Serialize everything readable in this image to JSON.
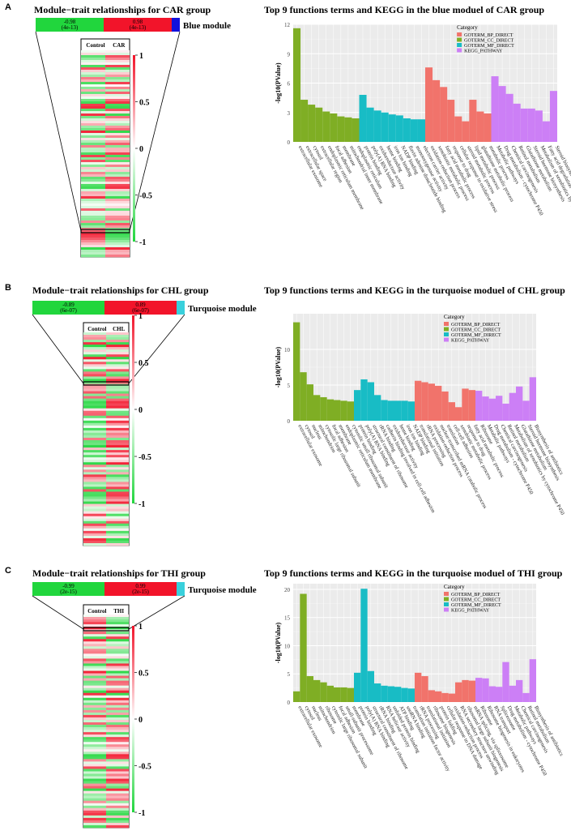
{
  "colors": {
    "bp": "#f1736b",
    "cc": "#7fae24",
    "mf": "#18bcc5",
    "kegg": "#cc7ff6",
    "neg": "#21d63d",
    "pos": "#f2142a",
    "blue_module": "#1111dd",
    "turq_module": "#39d0dc"
  },
  "panels": [
    {
      "label": "A",
      "heatmap": {
        "title": "Module−trait relationships for CAR group",
        "columns": [
          "Control",
          "CAR"
        ],
        "neg_value": "-0.98",
        "neg_p": "(4e-13)",
        "pos_value": "0.98",
        "pos_p": "(4e-13)",
        "module": "Blue module",
        "module_color": "blue_module",
        "scale_ticks": [
          "1",
          "0.5",
          "0",
          "-0.5",
          "-1"
        ]
      },
      "chart_data": {
        "type": "bar",
        "title": "Top 9 functions terms and KEGG in the blue moduel of CAR group",
        "ylabel": "-log10(PValue)",
        "ylim": [
          0,
          12
        ],
        "yticks": [
          0,
          3,
          6,
          9,
          12
        ],
        "legend_title": "Category",
        "legend": [
          "GOTERM_BP_DIRECT",
          "GOTERM_CC_DIRECT",
          "GOTERM_MF_DIRECT",
          "KEGG_PATHWAY"
        ],
        "series": [
          {
            "name": "GOTERM_CC_DIRECT",
            "color": "cc",
            "categories": [
              "extracellular exosome",
              "extracellular space",
              "cytosol",
              "extracellular region",
              "endoplasmic reticulum membrane",
              "focal adhesion",
              "membrane",
              "mitochondrial inner membrane",
              "endoplasmic reticulum"
            ],
            "values": [
              11.6,
              4.3,
              3.8,
              3.5,
              3.1,
              2.9,
              2.6,
              2.5,
              2.4
            ]
          },
          {
            "name": "GOTERM_MF_DIRECT",
            "color": "mf",
            "categories": [
              "protein binding",
              "poly(A) RNA binding",
              "oxidoreductase activity",
              "heme binding",
              "iron ion binding",
              "NADP binding",
              "flavin adenine dinucleotide binding",
              "monooxygenase activity",
              "electron carrier activity"
            ],
            "values": [
              4.8,
              3.5,
              3.2,
              3.0,
              2.8,
              2.7,
              2.4,
              2.3,
              2.3
            ]
          },
          {
            "name": "GOTERM_BP_DIRECT",
            "color": "bp",
            "categories": [
              "oxidation-reduction process",
              "xenobiotic metabolic process",
              "fatty acid metabolic process",
              "response to drug",
              "cellular response to oxidative stress",
              "steroid metabolic process",
              "lipid metabolic process",
              "glutathione metabolic process",
              "metabolic process"
            ],
            "values": [
              7.6,
              6.3,
              5.6,
              4.3,
              2.6,
              2.1,
              4.3,
              3.1,
              2.9
            ]
          },
          {
            "name": "KEGG_PATHWAY",
            "color": "kegg",
            "categories": [
              "Metabolic pathways",
              "Drug metabolism - cytochrome P450",
              "Chemical carcinogenesis",
              "Retinol metabolism",
              "Glutathione metabolism",
              "Steroid hormone biosynthesis",
              "Metabolism of xenobiotics by cytochrome P450",
              "Fatty acid degradation",
              "Steroid biosynthesis"
            ],
            "values": [
              6.7,
              5.7,
              4.9,
              3.9,
              3.4,
              3.4,
              3.2,
              2.1,
              5.2
            ]
          }
        ]
      }
    },
    {
      "label": "B",
      "heatmap": {
        "title": "Module−trait relationships for CHL group",
        "columns": [
          "Control",
          "CHL"
        ],
        "neg_value": "-0.89",
        "neg_p": "(6e-07)",
        "pos_value": "0.89",
        "pos_p": "(6e-07)",
        "module": "Turquoise module",
        "module_color": "turq_module",
        "scale_ticks": [
          "1",
          "0.5",
          "0",
          "-0.5",
          "-1"
        ]
      },
      "chart_data": {
        "type": "bar",
        "title": "Top 9 functions terms and KEGG in the turquoise moduel of CHL group",
        "ylabel": "-log10(PValue)",
        "ylim": [
          0,
          15
        ],
        "yticks": [
          0,
          5,
          10
        ],
        "legend_title": "Category",
        "legend": [
          "GOTERM_BP_DIRECT",
          "GOTERM_CC_DIRECT",
          "GOTERM_MF_DIRECT",
          "KEGG_PATHWAY"
        ],
        "series": [
          {
            "name": "GOTERM_CC_DIRECT",
            "color": "cc",
            "categories": [
              "extracellular exosome",
              "cytosol",
              "nucleus",
              "mitochondrion",
              "cytosolic large ribosomal subunit",
              "focal adhesion",
              "membrane",
              "endoplasmic reticulum membrane",
              "cytosolic small ribosomal subunit"
            ],
            "values": [
              13.8,
              6.8,
              5.1,
              3.6,
              3.3,
              3.0,
              2.9,
              2.8,
              2.7
            ]
          },
          {
            "name": "GOTERM_MF_DIRECT",
            "color": "mf",
            "categories": [
              "protein binding",
              "poly(A) RNA binding",
              "structural constituent of ribosome",
              "rRNA binding",
              "cadherin binding involved in cell-cell adhesion",
              "oxidoreductase activity",
              "heme binding",
              "iron ion binding",
              "NADP binding"
            ],
            "values": [
              4.3,
              5.8,
              5.4,
              3.6,
              2.9,
              2.8,
              2.8,
              2.8,
              2.7
            ]
          },
          {
            "name": "GOTERM_BP_DIRECT",
            "color": "bp",
            "categories": [
              "translational initiation",
              "rRNA processing",
              "oxidation-reduction process",
              "nuclear-transcribed mRNA catabolic process",
              "translation",
              "cell-cell adhesion",
              "xenobiotic metabolic process",
              "response to drug",
              "fatty acid metabolic process"
            ],
            "values": [
              5.6,
              5.4,
              5.2,
              4.9,
              4.1,
              2.6,
              1.9,
              4.5,
              4.3
            ]
          },
          {
            "name": "KEGG_PATHWAY",
            "color": "kegg",
            "categories": [
              "Ribosome",
              "Metabolic pathways",
              "Drug metabolism - cytochrome P450",
              "Chemical carcinogenesis",
              "Retinol metabolism",
              "Metabolism of xenobiotics by cytochrome P450",
              "Glutathione metabolism",
              "Steroid hormone biosynthesis",
              "Biosynthesis of antibiotics"
            ],
            "values": [
              4.2,
              3.4,
              3.1,
              3.5,
              2.4,
              3.9,
              4.8,
              2.8,
              6.1
            ]
          }
        ]
      }
    },
    {
      "label": "C",
      "heatmap": {
        "title": "Module−trait relationships for THI group",
        "columns": [
          "Control",
          "THI"
        ],
        "neg_value": "-0.99",
        "neg_p": "(2e-15)",
        "pos_value": "0.99",
        "pos_p": "(2e-15)",
        "module": "Turquoise module",
        "module_color": "turq_module",
        "scale_ticks": [
          "1",
          "0.5",
          "0",
          "-0.5",
          "-1"
        ]
      },
      "chart_data": {
        "type": "bar",
        "title": "Top 9 functions terms and KEGG in the turquoise moduel of THI group",
        "ylabel": "-log10(PValue)",
        "ylim": [
          0,
          21
        ],
        "yticks": [
          0,
          5,
          10,
          15,
          20
        ],
        "legend_title": "Category",
        "legend": [
          "GOTERM_BP_DIRECT",
          "GOTERM_CC_DIRECT",
          "GOTERM_MF_DIRECT",
          "KEGG_PATHWAY"
        ],
        "series": [
          {
            "name": "GOTERM_CC_DIRECT",
            "color": "cc",
            "categories": [
              "extracellular exosome",
              "cytosol",
              "nucleus",
              "mitochondrion",
              "ribosome",
              "cytosolic large ribosomal subunit",
              "focal adhesion",
              "small-subunit processome",
              "membrane"
            ],
            "values": [
              1.9,
              19.2,
              4.6,
              3.9,
              3.5,
              2.9,
              2.6,
              2.6,
              2.5
            ]
          },
          {
            "name": "GOTERM_MF_DIRECT",
            "color": "mf",
            "categories": [
              "protein binding",
              "poly(A) RNA binding",
              "structural constituent of ribosome",
              "rRNA binding",
              "RNA helicase activity",
              "unfolded protein binding",
              "ATP binding",
              "snoRNA binding",
              "translation initiation factor activity"
            ],
            "values": [
              5.2,
              20.1,
              5.5,
              3.3,
              2.9,
              2.8,
              2.7,
              2.5,
              2.4
            ]
          },
          {
            "name": "GOTERM_BP_DIRECT",
            "color": "bp",
            "categories": [
              "rRNA processing",
              "translational initiation",
              "ribosome biogenesis",
              "protein folding",
              "cellular response to DNA damage",
              "oxidation-reduction process",
              "RNA secondary structure unwinding",
              "ribosomal large subunit biogenesis",
              "mRNA splicing, via spliceosome"
            ],
            "values": [
              5.2,
              4.6,
              2.1,
              1.9,
              1.6,
              1.5,
              3.5,
              3.9,
              3.8
            ]
          },
          {
            "name": "KEGG_PATHWAY",
            "color": "kegg",
            "categories": [
              "Ribosome",
              "Ribosome biogenesis in eukaryotes",
              "RNA transport",
              "Spliceosome",
              "Drug metabolism - cytochrome P450",
              "Metabolic pathways",
              "Chemical carcinogenesis",
              "Retinol metabolism",
              "Biosynthesis of antibiotics"
            ],
            "values": [
              4.3,
              4.2,
              2.8,
              2.7,
              7.1,
              2.9,
              3.9,
              1.6,
              7.6
            ]
          }
        ]
      }
    }
  ]
}
